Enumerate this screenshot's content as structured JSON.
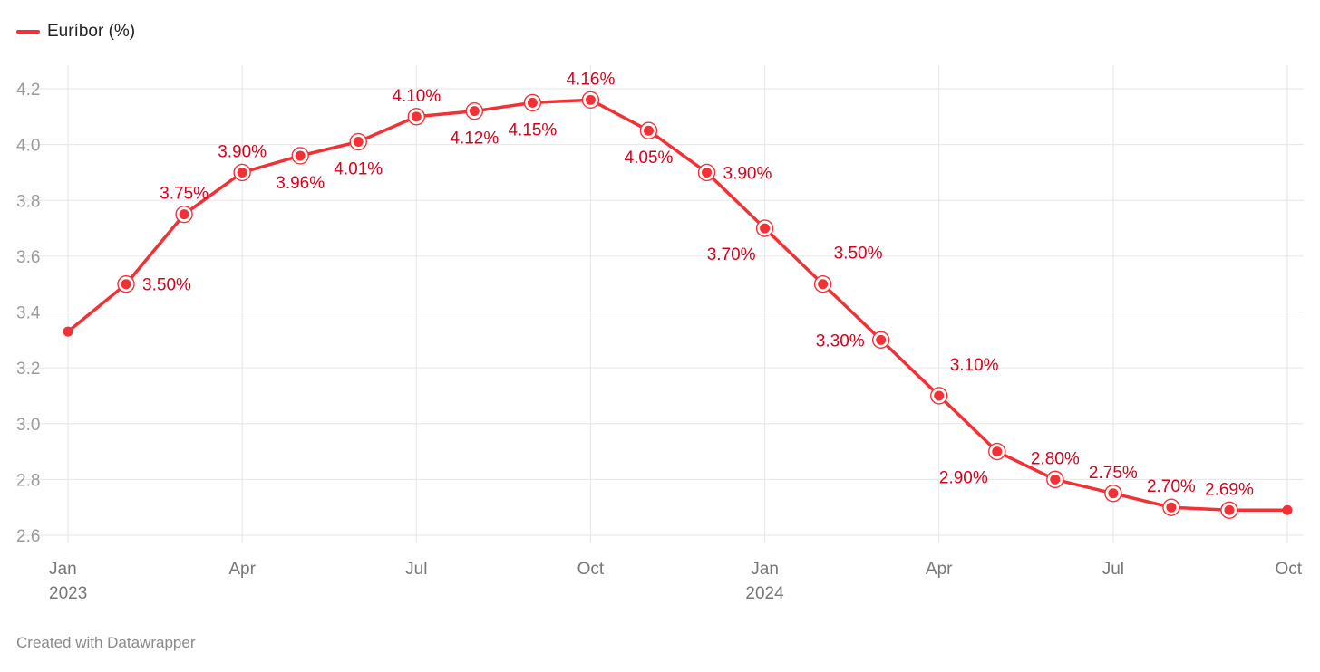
{
  "colors": {
    "series": "#f03237",
    "label": "#d9001b",
    "grid": "#e6e6e6",
    "axis_text": "#9b9b9b"
  },
  "legend": {
    "label": "Euríbor (%)",
    "placement": "top-left"
  },
  "footer": {
    "credit": "Created with Datawrapper"
  },
  "chart_data": {
    "type": "line",
    "title": "",
    "xlabel": "",
    "ylabel": "",
    "grid": true,
    "ylim": [
      2.6,
      4.2
    ],
    "xlim": [
      "2023-01",
      "2024-10"
    ],
    "y_ticks": [
      "4.2",
      "4.0",
      "3.8",
      "3.6",
      "3.4",
      "3.2",
      "3.0",
      "2.8",
      "2.6"
    ],
    "x_ticks": [
      {
        "month": "2023-01",
        "label": "Jan",
        "sublabel": "2023"
      },
      {
        "month": "2023-04",
        "label": "Apr",
        "sublabel": ""
      },
      {
        "month": "2023-07",
        "label": "Jul",
        "sublabel": ""
      },
      {
        "month": "2023-10",
        "label": "Oct",
        "sublabel": ""
      },
      {
        "month": "2024-01",
        "label": "Jan",
        "sublabel": "2024"
      },
      {
        "month": "2024-04",
        "label": "Apr",
        "sublabel": ""
      },
      {
        "month": "2024-07",
        "label": "Jul",
        "sublabel": ""
      },
      {
        "month": "2024-10",
        "label": "Oct",
        "sublabel": ""
      }
    ],
    "series": [
      {
        "name": "Euríbor (%)",
        "x": [
          "2023-01",
          "2023-02",
          "2023-03",
          "2023-04",
          "2023-05",
          "2023-06",
          "2023-07",
          "2023-08",
          "2023-09",
          "2023-10",
          "2023-11",
          "2023-12",
          "2024-01",
          "2024-02",
          "2024-03",
          "2024-04",
          "2024-05",
          "2024-06",
          "2024-07",
          "2024-08",
          "2024-09",
          "2024-10"
        ],
        "values": [
          3.33,
          3.5,
          3.75,
          3.9,
          3.96,
          4.01,
          4.1,
          4.12,
          4.15,
          4.16,
          4.05,
          3.9,
          3.7,
          3.5,
          3.3,
          3.1,
          2.9,
          2.8,
          2.75,
          2.7,
          2.69,
          2.69
        ],
        "labels": [
          "",
          "3.50%",
          "3.75%",
          "3.90%",
          "3.96%",
          "4.01%",
          "4.10%",
          "4.12%",
          "4.15%",
          "4.16%",
          "4.05%",
          "3.90%",
          "3.70%",
          "3.50%",
          "3.30%",
          "3.10%",
          "2.90%",
          "2.80%",
          "2.75%",
          "2.70%",
          "2.69%",
          ""
        ],
        "label_position": [
          "",
          "right",
          "above",
          "above",
          "below",
          "below",
          "above",
          "below",
          "below",
          "above",
          "below",
          "right",
          "below-left",
          "above-right",
          "left",
          "above-right",
          "below-left",
          "above",
          "above",
          "above",
          "above",
          ""
        ]
      }
    ]
  }
}
